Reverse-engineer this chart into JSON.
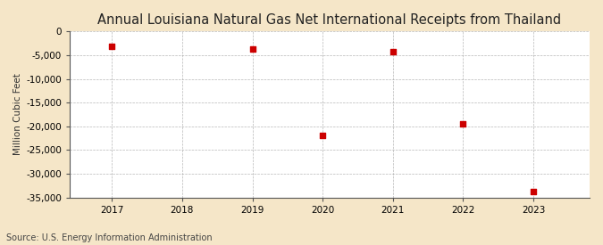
{
  "title": "Annual Louisiana Natural Gas Net International Receipts from Thailand",
  "ylabel": "Million Cubic Feet",
  "source": "Source: U.S. Energy Information Administration",
  "years": [
    2017,
    2019,
    2020,
    2021,
    2022,
    2023
  ],
  "values": [
    -3200,
    -3700,
    -22000,
    -4200,
    -19500,
    -33800
  ],
  "ylim": [
    -35000,
    0
  ],
  "yticks": [
    0,
    -5000,
    -10000,
    -15000,
    -20000,
    -25000,
    -30000,
    -35000
  ],
  "xlim": [
    2016.4,
    2023.8
  ],
  "xticks": [
    2017,
    2018,
    2019,
    2020,
    2021,
    2022,
    2023
  ],
  "marker_color": "#cc0000",
  "marker": "s",
  "marker_size": 4,
  "fig_bg_color": "#f5e6c8",
  "plot_bg_color": "#ffffff",
  "grid_color": "#999999",
  "title_fontsize": 10.5,
  "label_fontsize": 7.5,
  "tick_fontsize": 7.5,
  "source_fontsize": 7
}
